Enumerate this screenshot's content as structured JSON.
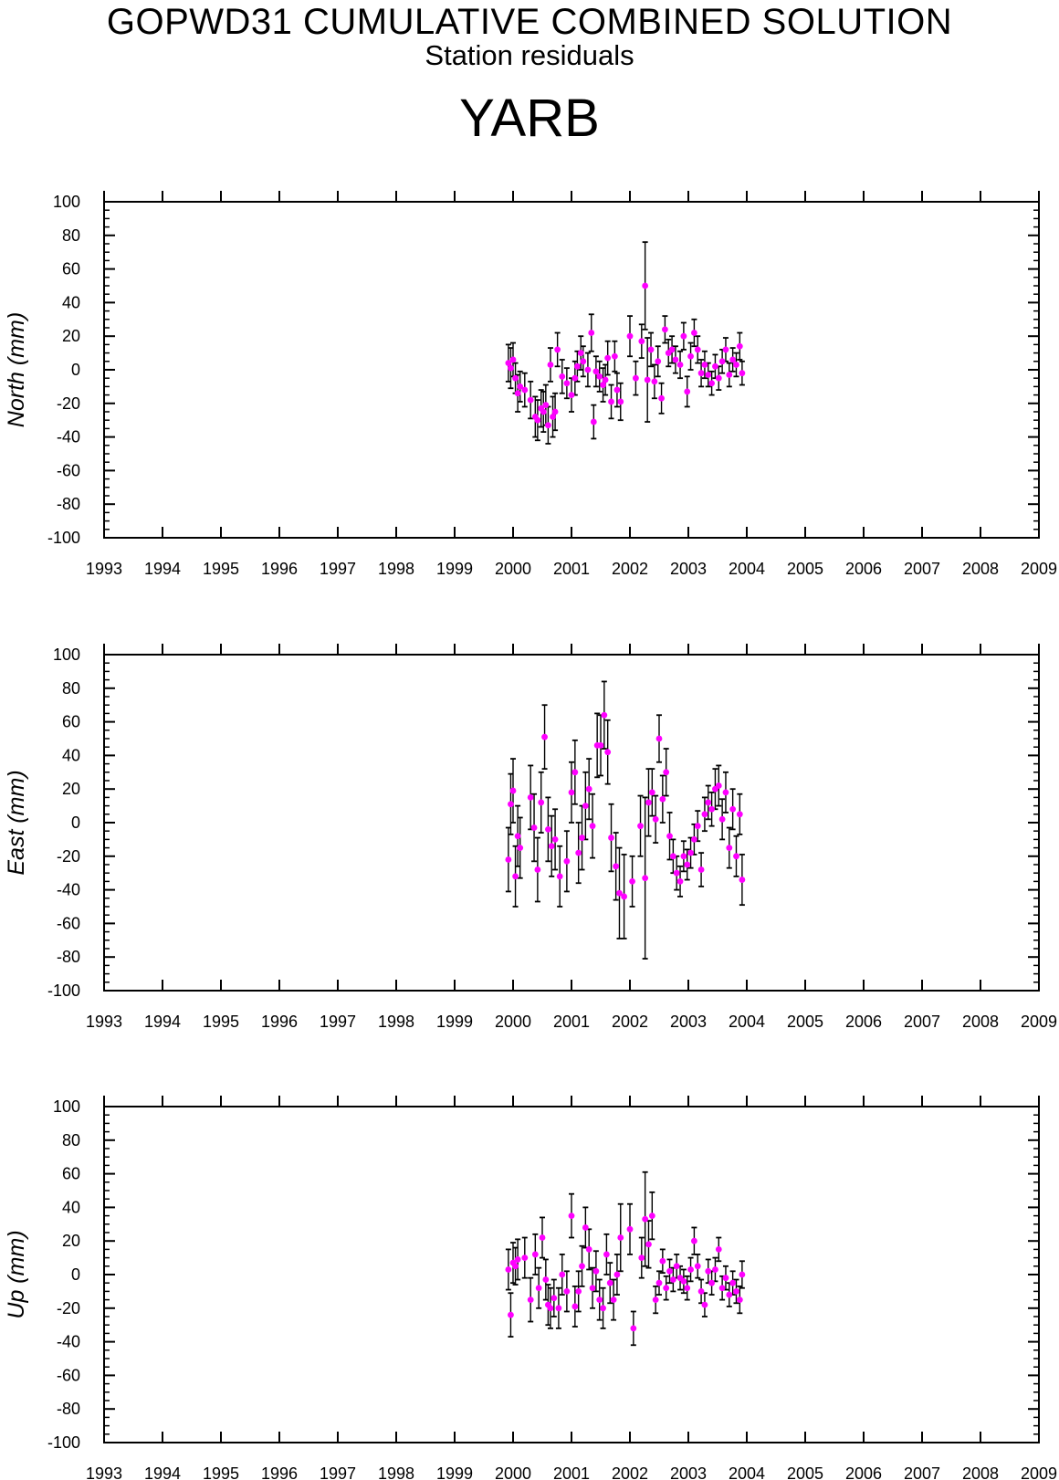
{
  "header": {
    "title": "GOPWD31 CUMULATIVE COMBINED SOLUTION",
    "subtitle": "Station residuals",
    "station": "YARB"
  },
  "colors": {
    "marker": "#ff00ff",
    "errorbar": "#000000",
    "axes": "#000000"
  },
  "chart_data": [
    {
      "type": "scatter",
      "ylabel": "North (mm)",
      "xlim": [
        1993,
        2009
      ],
      "ylim": [
        -100,
        100
      ],
      "x_ticks": [
        1993,
        1994,
        1995,
        1996,
        1997,
        1998,
        1999,
        2000,
        2001,
        2002,
        2003,
        2004,
        2005,
        2006,
        2007,
        2008,
        2009
      ],
      "y_ticks": [
        100,
        80,
        60,
        40,
        20,
        0,
        -20,
        -40,
        -60,
        -80,
        -100
      ],
      "grid": false,
      "points": [
        [
          1999.92,
          4,
          11
        ],
        [
          1999.96,
          1,
          12
        ],
        [
          2000.0,
          6,
          10
        ],
        [
          2000.04,
          -5,
          9
        ],
        [
          2000.08,
          -14,
          11
        ],
        [
          2000.12,
          -10,
          9
        ],
        [
          2000.2,
          -12,
          10
        ],
        [
          2000.3,
          -18,
          11
        ],
        [
          2000.38,
          -28,
          12
        ],
        [
          2000.42,
          -30,
          12
        ],
        [
          2000.48,
          -23,
          11
        ],
        [
          2000.52,
          -25,
          12
        ],
        [
          2000.56,
          -21,
          12
        ],
        [
          2000.6,
          -33,
          11
        ],
        [
          2000.64,
          3,
          10
        ],
        [
          2000.68,
          -28,
          12
        ],
        [
          2000.72,
          -25,
          11
        ],
        [
          2000.76,
          12,
          10
        ],
        [
          2000.84,
          -4,
          10
        ],
        [
          2000.92,
          -8,
          9
        ],
        [
          2001.0,
          -15,
          10
        ],
        [
          2001.06,
          -5,
          10
        ],
        [
          2001.1,
          2,
          9
        ],
        [
          2001.16,
          10,
          10
        ],
        [
          2001.2,
          5,
          9
        ],
        [
          2001.28,
          0,
          10
        ],
        [
          2001.34,
          22,
          11
        ],
        [
          2001.38,
          -31,
          10
        ],
        [
          2001.42,
          -1,
          9
        ],
        [
          2001.48,
          -4,
          9
        ],
        [
          2001.54,
          -9,
          10
        ],
        [
          2001.58,
          -6,
          9
        ],
        [
          2001.62,
          7,
          10
        ],
        [
          2001.68,
          -19,
          10
        ],
        [
          2001.74,
          8,
          9
        ],
        [
          2001.78,
          -12,
          10
        ],
        [
          2001.84,
          -19,
          11
        ],
        [
          2002.0,
          20,
          12
        ],
        [
          2002.1,
          -5,
          10
        ],
        [
          2002.2,
          17,
          10
        ],
        [
          2002.26,
          50,
          26
        ],
        [
          2002.3,
          -6,
          25
        ],
        [
          2002.36,
          12,
          10
        ],
        [
          2002.42,
          -7,
          10
        ],
        [
          2002.48,
          5,
          9
        ],
        [
          2002.54,
          -17,
          9
        ],
        [
          2002.6,
          24,
          8
        ],
        [
          2002.66,
          10,
          8
        ],
        [
          2002.72,
          12,
          8
        ],
        [
          2002.78,
          6,
          8
        ],
        [
          2002.86,
          3,
          8
        ],
        [
          2002.92,
          20,
          8
        ],
        [
          2002.98,
          -13,
          9
        ],
        [
          2003.04,
          8,
          8
        ],
        [
          2003.1,
          22,
          8
        ],
        [
          2003.16,
          12,
          8
        ],
        [
          2003.22,
          -2,
          8
        ],
        [
          2003.28,
          3,
          8
        ],
        [
          2003.34,
          -3,
          7
        ],
        [
          2003.4,
          -8,
          7
        ],
        [
          2003.46,
          2,
          7
        ],
        [
          2003.52,
          -5,
          7
        ],
        [
          2003.58,
          5,
          7
        ],
        [
          2003.64,
          12,
          7
        ],
        [
          2003.7,
          -3,
          7
        ],
        [
          2003.76,
          6,
          7
        ],
        [
          2003.82,
          3,
          7
        ],
        [
          2003.88,
          14,
          8
        ],
        [
          2003.92,
          -2,
          7
        ]
      ]
    },
    {
      "type": "scatter",
      "ylabel": "East (mm)",
      "xlim": [
        1993,
        2009
      ],
      "ylim": [
        -100,
        100
      ],
      "x_ticks": [
        1993,
        1994,
        1995,
        1996,
        1997,
        1998,
        1999,
        2000,
        2001,
        2002,
        2003,
        2004,
        2005,
        2006,
        2007,
        2008,
        2009
      ],
      "y_ticks": [
        100,
        80,
        60,
        40,
        20,
        0,
        -20,
        -40,
        -60,
        -80,
        -100
      ],
      "grid": false,
      "points": [
        [
          1999.92,
          -22,
          19
        ],
        [
          1999.96,
          11,
          18
        ],
        [
          2000.0,
          19,
          19
        ],
        [
          2000.04,
          -32,
          18
        ],
        [
          2000.08,
          -8,
          18
        ],
        [
          2000.12,
          -15,
          18
        ],
        [
          2000.3,
          15,
          19
        ],
        [
          2000.36,
          -3,
          20
        ],
        [
          2000.42,
          -28,
          19
        ],
        [
          2000.48,
          12,
          18
        ],
        [
          2000.54,
          51,
          19
        ],
        [
          2000.6,
          -4,
          19
        ],
        [
          2000.66,
          -14,
          18
        ],
        [
          2000.72,
          -10,
          18
        ],
        [
          2000.8,
          -32,
          18
        ],
        [
          2000.92,
          -23,
          18
        ],
        [
          2001.0,
          18,
          18
        ],
        [
          2001.06,
          30,
          19
        ],
        [
          2001.12,
          -18,
          18
        ],
        [
          2001.18,
          -9,
          19
        ],
        [
          2001.24,
          10,
          20
        ],
        [
          2001.3,
          20,
          18
        ],
        [
          2001.36,
          -2,
          19
        ],
        [
          2001.44,
          46,
          19
        ],
        [
          2001.5,
          46,
          18
        ],
        [
          2001.56,
          64,
          20
        ],
        [
          2001.62,
          42,
          19
        ],
        [
          2001.68,
          -9,
          20
        ],
        [
          2001.76,
          -26,
          20
        ],
        [
          2001.82,
          -42,
          27
        ],
        [
          2001.9,
          -44,
          25
        ],
        [
          2002.04,
          -35,
          15
        ],
        [
          2002.18,
          -2,
          18
        ],
        [
          2002.26,
          -33,
          48
        ],
        [
          2002.32,
          12,
          20
        ],
        [
          2002.38,
          18,
          14
        ],
        [
          2002.44,
          2,
          14
        ],
        [
          2002.5,
          50,
          14
        ],
        [
          2002.56,
          14,
          14
        ],
        [
          2002.62,
          30,
          14
        ],
        [
          2002.68,
          -8,
          14
        ],
        [
          2002.74,
          -20,
          10
        ],
        [
          2002.8,
          -30,
          10
        ],
        [
          2002.86,
          -35,
          9
        ],
        [
          2002.92,
          -20,
          9
        ],
        [
          2002.98,
          -25,
          9
        ],
        [
          2003.04,
          -18,
          9
        ],
        [
          2003.1,
          -10,
          9
        ],
        [
          2003.16,
          -2,
          9
        ],
        [
          2003.22,
          -28,
          10
        ],
        [
          2003.28,
          5,
          10
        ],
        [
          2003.34,
          12,
          10
        ],
        [
          2003.4,
          8,
          10
        ],
        [
          2003.46,
          20,
          12
        ],
        [
          2003.52,
          22,
          12
        ],
        [
          2003.58,
          2,
          12
        ],
        [
          2003.64,
          18,
          12
        ],
        [
          2003.7,
          -15,
          12
        ],
        [
          2003.76,
          8,
          12
        ],
        [
          2003.82,
          -20,
          12
        ],
        [
          2003.88,
          5,
          12
        ],
        [
          2003.92,
          -34,
          15
        ]
      ]
    },
    {
      "type": "scatter",
      "ylabel": "Up (mm)",
      "xlim": [
        1993,
        2009
      ],
      "ylim": [
        -100,
        100
      ],
      "x_ticks": [
        1993,
        1994,
        1995,
        1996,
        1997,
        1998,
        1999,
        2000,
        2001,
        2002,
        2003,
        2004,
        2005,
        2006,
        2007,
        2008,
        2009
      ],
      "y_ticks": [
        100,
        80,
        60,
        40,
        20,
        0,
        -20,
        -40,
        -60,
        -80,
        -100
      ],
      "grid": false,
      "points": [
        [
          1999.92,
          3,
          12
        ],
        [
          1999.96,
          -24,
          13
        ],
        [
          2000.0,
          7,
          12
        ],
        [
          2000.04,
          5,
          11
        ],
        [
          2000.08,
          9,
          12
        ],
        [
          2000.2,
          10,
          12
        ],
        [
          2000.3,
          -15,
          13
        ],
        [
          2000.38,
          12,
          12
        ],
        [
          2000.44,
          -8,
          12
        ],
        [
          2000.5,
          22,
          12
        ],
        [
          2000.56,
          -3,
          12
        ],
        [
          2000.6,
          -18,
          12
        ],
        [
          2000.64,
          -20,
          12
        ],
        [
          2000.7,
          -14,
          11
        ],
        [
          2000.78,
          -20,
          12
        ],
        [
          2000.84,
          0,
          12
        ],
        [
          2000.92,
          -10,
          12
        ],
        [
          2001.0,
          35,
          13
        ],
        [
          2001.06,
          -19,
          12
        ],
        [
          2001.12,
          -10,
          12
        ],
        [
          2001.18,
          5,
          12
        ],
        [
          2001.24,
          28,
          12
        ],
        [
          2001.3,
          15,
          12
        ],
        [
          2001.36,
          -8,
          12
        ],
        [
          2001.42,
          2,
          12
        ],
        [
          2001.48,
          -15,
          12
        ],
        [
          2001.54,
          -20,
          12
        ],
        [
          2001.6,
          12,
          12
        ],
        [
          2001.66,
          -5,
          12
        ],
        [
          2001.72,
          -15,
          12
        ],
        [
          2001.78,
          0,
          12
        ],
        [
          2001.84,
          22,
          20
        ],
        [
          2002.0,
          27,
          15
        ],
        [
          2002.06,
          -32,
          10
        ],
        [
          2002.2,
          10,
          12
        ],
        [
          2002.26,
          33,
          28
        ],
        [
          2002.32,
          18,
          14
        ],
        [
          2002.38,
          35,
          14
        ],
        [
          2002.44,
          -15,
          8
        ],
        [
          2002.5,
          -5,
          7
        ],
        [
          2002.56,
          8,
          7
        ],
        [
          2002.62,
          -8,
          7
        ],
        [
          2002.68,
          2,
          7
        ],
        [
          2002.74,
          -3,
          7
        ],
        [
          2002.8,
          5,
          7
        ],
        [
          2002.86,
          -2,
          7
        ],
        [
          2002.92,
          -4,
          7
        ],
        [
          2002.98,
          -8,
          7
        ],
        [
          2003.04,
          3,
          7
        ],
        [
          2003.1,
          20,
          8
        ],
        [
          2003.16,
          5,
          7
        ],
        [
          2003.22,
          -10,
          7
        ],
        [
          2003.28,
          -18,
          7
        ],
        [
          2003.34,
          2,
          7
        ],
        [
          2003.4,
          -5,
          7
        ],
        [
          2003.46,
          3,
          7
        ],
        [
          2003.52,
          15,
          7
        ],
        [
          2003.58,
          -8,
          7
        ],
        [
          2003.64,
          -2,
          7
        ],
        [
          2003.7,
          -12,
          7
        ],
        [
          2003.76,
          -5,
          7
        ],
        [
          2003.82,
          -10,
          7
        ],
        [
          2003.88,
          -15,
          8
        ],
        [
          2003.92,
          0,
          8
        ]
      ]
    }
  ]
}
